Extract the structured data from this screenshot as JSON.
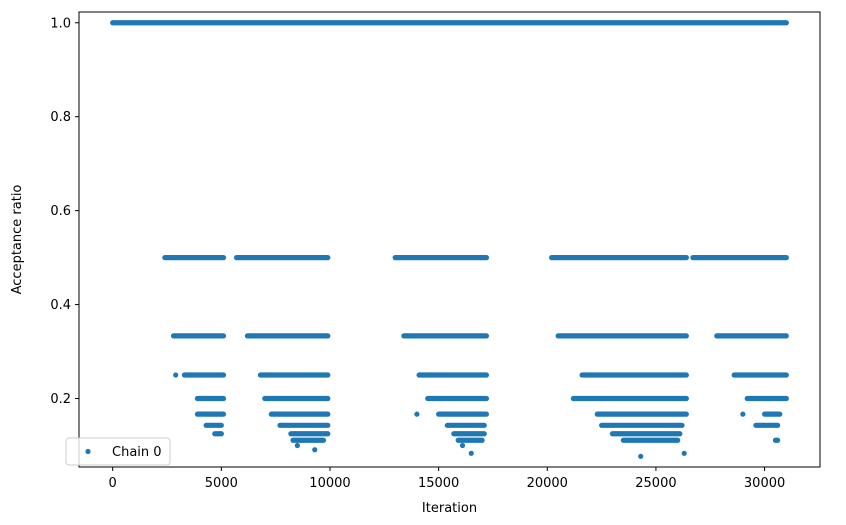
{
  "chart_data": {
    "type": "scatter",
    "xlabel": "Iteration",
    "ylabel": "Acceptance ratio",
    "xlim": [
      -1550,
      32550
    ],
    "ylim": [
      0.0542,
      1.0229
    ],
    "xticks": [
      0,
      5000,
      10000,
      15000,
      20000,
      25000,
      30000
    ],
    "yticks": [
      0.2,
      0.4,
      0.6,
      0.8,
      1.0
    ],
    "xtick_labels": [
      "0",
      "5000",
      "10000",
      "15000",
      "20000",
      "25000",
      "30000"
    ],
    "ytick_labels": [
      "0.2",
      "0.4",
      "0.6",
      "0.8",
      "1.0"
    ],
    "legend": {
      "position": "lower-left",
      "entries": [
        "Chain 0"
      ]
    },
    "grid": false,
    "series": [
      {
        "name": "Chain 0",
        "color": "#1f77b4",
        "marker": "circle",
        "segments": [
          {
            "y": 1.0,
            "x_from": 0,
            "x_to": 31000
          },
          {
            "y": 0.5,
            "x_from": 2400,
            "x_to": 5100
          },
          {
            "y": 0.5,
            "x_from": 5700,
            "x_to": 9900
          },
          {
            "y": 0.5,
            "x_from": 13000,
            "x_to": 17200
          },
          {
            "y": 0.5,
            "x_from": 20200,
            "x_to": 26400
          },
          {
            "y": 0.5,
            "x_from": 26700,
            "x_to": 31000
          },
          {
            "y": 0.3333,
            "x_from": 2800,
            "x_to": 5100
          },
          {
            "y": 0.3333,
            "x_from": 6200,
            "x_to": 9900
          },
          {
            "y": 0.3333,
            "x_from": 13400,
            "x_to": 17200
          },
          {
            "y": 0.3333,
            "x_from": 20500,
            "x_to": 26400
          },
          {
            "y": 0.3333,
            "x_from": 27800,
            "x_to": 31000
          },
          {
            "y": 0.25,
            "x_from": 3300,
            "x_to": 5100
          },
          {
            "y": 0.25,
            "x_from": 6800,
            "x_to": 9900
          },
          {
            "y": 0.25,
            "x_from": 14100,
            "x_to": 17200
          },
          {
            "y": 0.25,
            "x_from": 21600,
            "x_to": 26400
          },
          {
            "y": 0.25,
            "x_from": 28600,
            "x_to": 31000
          },
          {
            "y": 0.2,
            "x_from": 3900,
            "x_to": 5100
          },
          {
            "y": 0.2,
            "x_from": 7000,
            "x_to": 9900
          },
          {
            "y": 0.2,
            "x_from": 14500,
            "x_to": 17200
          },
          {
            "y": 0.2,
            "x_from": 21200,
            "x_to": 26400
          },
          {
            "y": 0.2,
            "x_from": 29200,
            "x_to": 31000
          },
          {
            "y": 0.1667,
            "x_from": 3900,
            "x_to": 5100
          },
          {
            "y": 0.1667,
            "x_from": 7300,
            "x_to": 9900
          },
          {
            "y": 0.1667,
            "x_from": 15000,
            "x_to": 17200
          },
          {
            "y": 0.1667,
            "x_from": 22300,
            "x_to": 26400
          },
          {
            "y": 0.1667,
            "x_from": 30000,
            "x_to": 30700
          },
          {
            "y": 0.1429,
            "x_from": 4300,
            "x_to": 5000
          },
          {
            "y": 0.1429,
            "x_from": 7700,
            "x_to": 9900
          },
          {
            "y": 0.1429,
            "x_from": 15400,
            "x_to": 17100
          },
          {
            "y": 0.1429,
            "x_from": 22500,
            "x_to": 26200
          },
          {
            "y": 0.1429,
            "x_from": 29600,
            "x_to": 30600
          },
          {
            "y": 0.125,
            "x_from": 4700,
            "x_to": 5000
          },
          {
            "y": 0.125,
            "x_from": 8200,
            "x_to": 9900
          },
          {
            "y": 0.125,
            "x_from": 15700,
            "x_to": 17100
          },
          {
            "y": 0.125,
            "x_from": 23000,
            "x_to": 26100
          },
          {
            "y": 0.1111,
            "x_from": 8300,
            "x_to": 9700
          },
          {
            "y": 0.1111,
            "x_from": 15900,
            "x_to": 17000
          },
          {
            "y": 0.1111,
            "x_from": 23500,
            "x_to": 26000
          },
          {
            "y": 0.1111,
            "x_from": 30500,
            "x_to": 30600
          }
        ],
        "points": [
          {
            "x": 2900,
            "y": 0.25
          },
          {
            "x": 8500,
            "y": 0.1
          },
          {
            "x": 9300,
            "y": 0.0909
          },
          {
            "x": 14000,
            "y": 0.1667
          },
          {
            "x": 16100,
            "y": 0.1
          },
          {
            "x": 16500,
            "y": 0.0833
          },
          {
            "x": 24300,
            "y": 0.0769
          },
          {
            "x": 26300,
            "y": 0.0833
          },
          {
            "x": 29000,
            "y": 0.1667
          }
        ]
      }
    ]
  }
}
